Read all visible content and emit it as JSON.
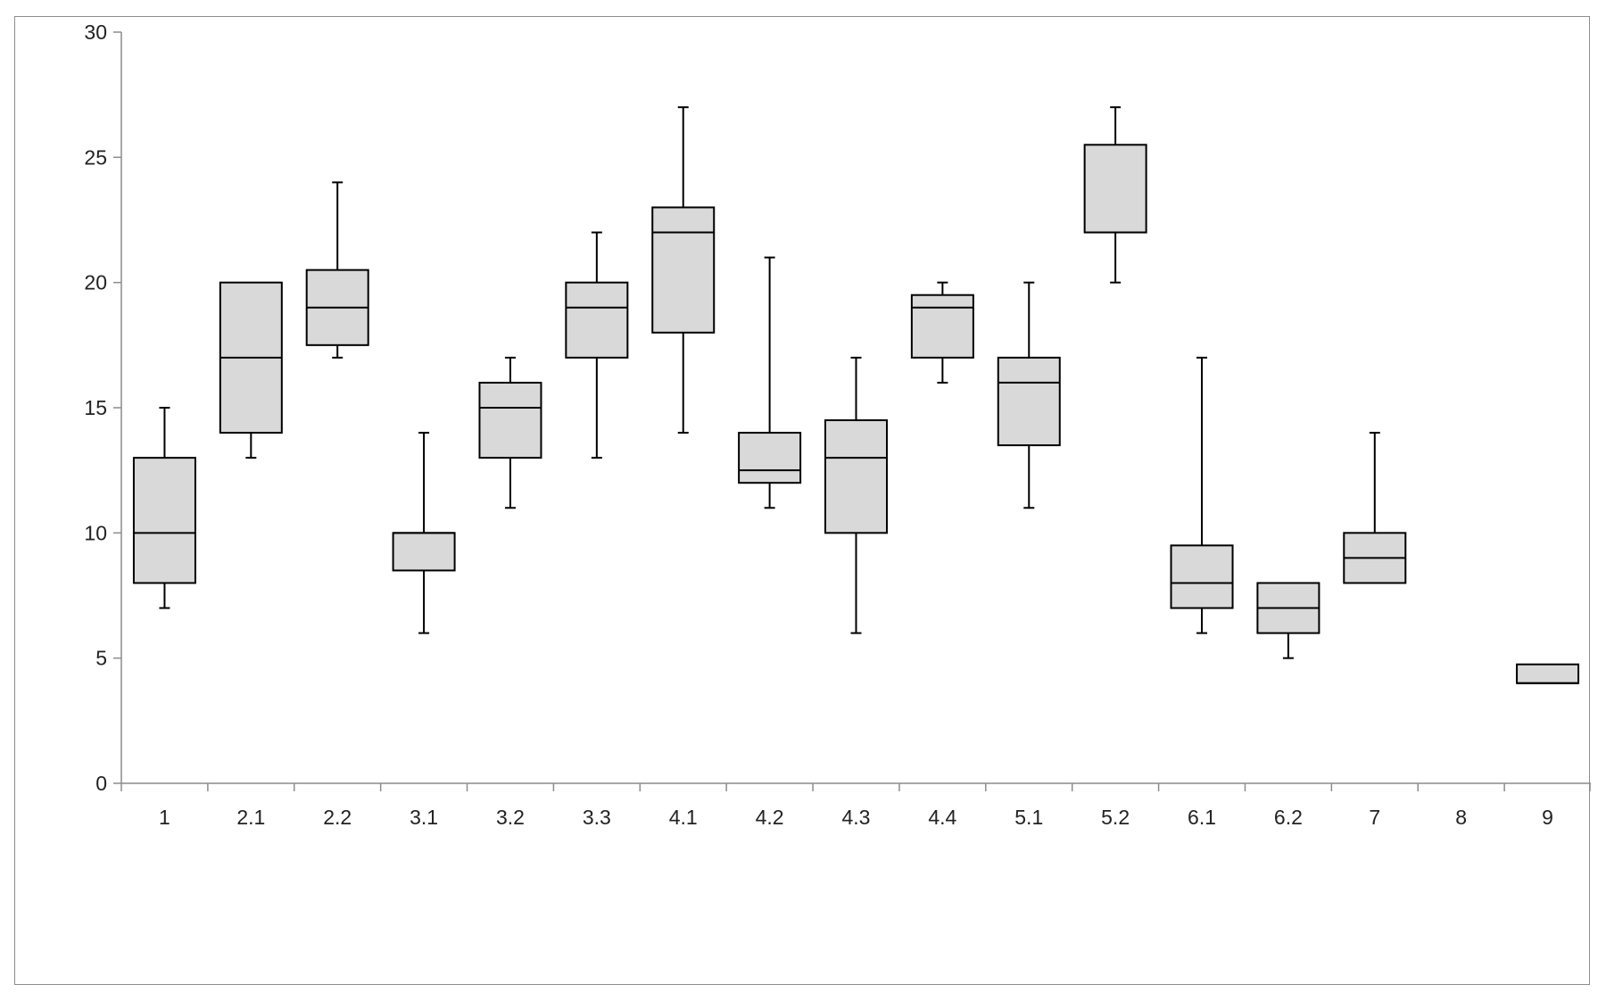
{
  "chart_data": {
    "type": "box",
    "title": "",
    "xlabel": "",
    "ylabel": "",
    "ylim": [
      0,
      30
    ],
    "yticks": [
      0,
      5,
      10,
      15,
      20,
      25,
      30
    ],
    "grid": false,
    "legend": "none",
    "box_fill": "#d9d9d9",
    "line_color": "#000000",
    "categories": [
      "1",
      "2.1",
      "2.2",
      "3.1",
      "3.2",
      "3.3",
      "4.1",
      "4.2",
      "4.3",
      "4.4",
      "5.1",
      "5.2",
      "6.1",
      "6.2",
      "7",
      "8",
      "9"
    ],
    "boxes": [
      {
        "category": "1",
        "min": 7,
        "q1": 8,
        "median": 10,
        "q3": 13,
        "max": 15
      },
      {
        "category": "2.1",
        "min": 13,
        "q1": 14,
        "median": 17,
        "q3": 20,
        "max": 20
      },
      {
        "category": "2.2",
        "min": 17,
        "q1": 17.5,
        "median": 19,
        "q3": 20.5,
        "max": 24
      },
      {
        "category": "3.1",
        "min": 6,
        "q1": 8.5,
        "median": 10,
        "q3": 10,
        "max": 14
      },
      {
        "category": "3.2",
        "min": 11,
        "q1": 13,
        "median": 15,
        "q3": 16,
        "max": 17
      },
      {
        "category": "3.3",
        "min": 13,
        "q1": 17,
        "median": 19,
        "q3": 20,
        "max": 22
      },
      {
        "category": "4.1",
        "min": 14,
        "q1": 18,
        "median": 22,
        "q3": 23,
        "max": 27
      },
      {
        "category": "4.2",
        "min": 11,
        "q1": 12,
        "median": 12.5,
        "q3": 14,
        "max": 21
      },
      {
        "category": "4.3",
        "min": 6,
        "q1": 10,
        "median": 13,
        "q3": 14.5,
        "max": 17
      },
      {
        "category": "4.4",
        "min": 16,
        "q1": 17,
        "median": 19,
        "q3": 19.5,
        "max": 20
      },
      {
        "category": "5.1",
        "min": 11,
        "q1": 13.5,
        "median": 16,
        "q3": 17,
        "max": 20
      },
      {
        "category": "5.2",
        "min": 20,
        "q1": 22,
        "median": 22,
        "q3": 25.5,
        "max": 27
      },
      {
        "category": "6.1",
        "min": 6,
        "q1": 7,
        "median": 8,
        "q3": 9.5,
        "max": 17
      },
      {
        "category": "6.2",
        "min": 5,
        "q1": 6,
        "median": 7,
        "q3": 8,
        "max": 8
      },
      {
        "category": "7",
        "min": 8,
        "q1": 8,
        "median": 9,
        "q3": 10,
        "max": 14
      },
      {
        "category": "8",
        "min": null,
        "q1": null,
        "median": null,
        "q3": null,
        "max": null
      },
      {
        "category": "9",
        "min": 4,
        "q1": 4,
        "median": 4,
        "q3": 4.75,
        "max": 4.75
      }
    ]
  }
}
